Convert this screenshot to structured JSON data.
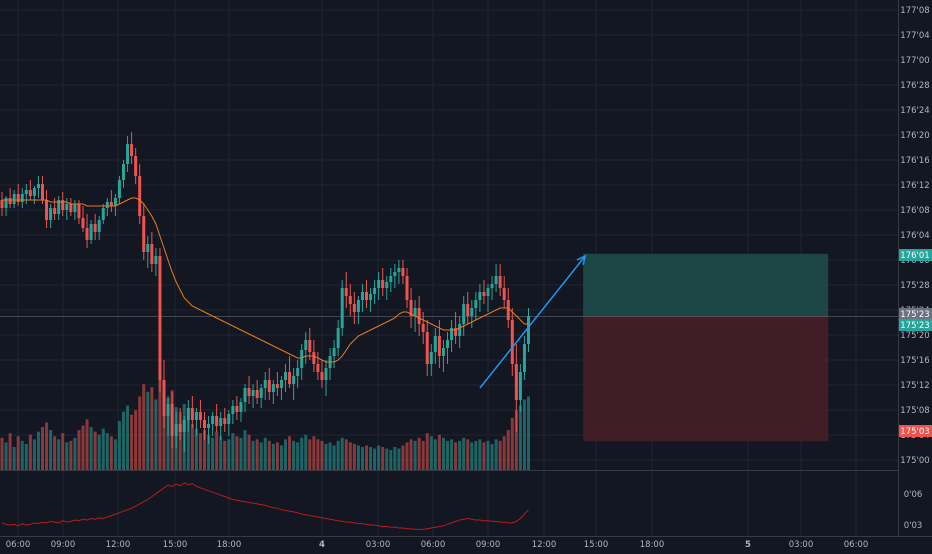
{
  "chart_data": {
    "type": "candlestick",
    "symbol": "",
    "colors": {
      "background": "#131722",
      "grid": "#1f2433",
      "up": "#26a69a",
      "down": "#ef5350",
      "up_volume": "#26a69a",
      "down_volume": "#ef5350",
      "moving_average": "#e87a22",
      "indicator_line": "#b71c1c",
      "trend_arrow": "#2196f3",
      "target_zone": "#1f4f4c",
      "stop_zone": "#4a2026",
      "axis_text": "#b2b5be",
      "scale_separator": "#363a45"
    },
    "x_ticks": [
      "06:00",
      "09:00",
      "12:00",
      "15:00",
      "18:00",
      "4",
      "03:00",
      "06:00",
      "09:00",
      "12:00",
      "15:00",
      "18:00",
      "5",
      "03:00",
      "06:00"
    ],
    "price_axis": {
      "ticks": [
        "177'08",
        "177'04",
        "177'00",
        "176'28",
        "176'24",
        "176'20",
        "176'16",
        "176'12",
        "176'08",
        "176'04",
        "176'00",
        "175'28",
        "175'24",
        "175'20",
        "175'16",
        "175'12",
        "175'08",
        "175'04",
        "175'00"
      ],
      "range": [
        174.95,
        177.3
      ]
    },
    "indicator_axis": {
      "ticks": [
        "0'06",
        "0'03"
      ]
    },
    "price_labels": [
      {
        "name": "target-price-label",
        "text": "176'01",
        "value": 176.03125,
        "color": "#26a69a"
      },
      {
        "name": "entry-price-label",
        "text": "175'23",
        "value": 175.71875,
        "color": "#6b7280"
      },
      {
        "name": "last-price-label",
        "text": "175'23",
        "value": 175.71875,
        "color": "#26a69a"
      },
      {
        "name": "stop-price-label",
        "text": "175'03",
        "value": 175.09375,
        "color": "#ef5350"
      }
    ],
    "position": {
      "entry": 175.71875,
      "target": 176.03125,
      "stop": 175.09375,
      "start_bar": 143,
      "end_bar": 204
    },
    "trend_arrow": {
      "from": [
        118,
        175.36
      ],
      "to": [
        144,
        176.02
      ]
    },
    "volume_ceiling": 6000,
    "indicator_range": [
      0.0,
      0.085
    ],
    "candles": [
      [
        176.3,
        176.34,
        176.22,
        176.26,
        2100
      ],
      [
        176.26,
        176.32,
        176.22,
        176.31,
        1800
      ],
      [
        176.31,
        176.36,
        176.26,
        176.28,
        2400
      ],
      [
        176.28,
        176.35,
        176.26,
        176.33,
        1500
      ],
      [
        176.33,
        176.38,
        176.27,
        176.29,
        2200
      ],
      [
        176.29,
        176.36,
        176.26,
        176.33,
        1900
      ],
      [
        176.33,
        176.38,
        176.28,
        176.35,
        1700
      ],
      [
        176.35,
        176.4,
        176.3,
        176.32,
        2300
      ],
      [
        176.32,
        176.37,
        176.28,
        176.36,
        2000
      ],
      [
        176.36,
        176.42,
        176.31,
        176.38,
        2500
      ],
      [
        176.38,
        176.42,
        176.28,
        176.3,
        2800
      ],
      [
        176.3,
        176.35,
        176.16,
        176.2,
        3100
      ],
      [
        176.2,
        176.28,
        176.16,
        176.26,
        2600
      ],
      [
        176.26,
        176.31,
        176.2,
        176.23,
        2200
      ],
      [
        176.23,
        176.32,
        176.2,
        176.3,
        2000
      ],
      [
        176.3,
        176.34,
        176.22,
        176.25,
        2400
      ],
      [
        176.25,
        176.31,
        176.2,
        176.28,
        1800
      ],
      [
        176.28,
        176.31,
        176.22,
        176.24,
        1900
      ],
      [
        176.24,
        176.3,
        176.2,
        176.28,
        2100
      ],
      [
        176.28,
        176.3,
        176.18,
        176.21,
        2600
      ],
      [
        176.21,
        176.27,
        176.14,
        176.16,
        2900
      ],
      [
        176.16,
        176.23,
        176.06,
        176.1,
        3300
      ],
      [
        176.1,
        176.2,
        176.08,
        176.18,
        2800
      ],
      [
        176.18,
        176.23,
        176.1,
        176.14,
        2500
      ],
      [
        176.14,
        176.22,
        176.1,
        176.2,
        2300
      ],
      [
        176.2,
        176.28,
        176.18,
        176.26,
        2700
      ],
      [
        176.26,
        176.31,
        176.22,
        176.29,
        2400
      ],
      [
        176.29,
        176.35,
        176.24,
        176.27,
        2200
      ],
      [
        176.27,
        176.33,
        176.22,
        176.31,
        2000
      ],
      [
        176.31,
        176.42,
        176.28,
        176.4,
        3200
      ],
      [
        176.4,
        176.5,
        176.36,
        176.48,
        3800
      ],
      [
        176.48,
        176.62,
        176.44,
        176.58,
        4200
      ],
      [
        176.58,
        176.64,
        176.48,
        176.52,
        3600
      ],
      [
        176.52,
        176.56,
        176.38,
        176.42,
        3900
      ],
      [
        176.42,
        176.48,
        176.18,
        176.22,
        4800
      ],
      [
        176.22,
        176.28,
        176.0,
        176.04,
        5600
      ],
      [
        176.04,
        176.12,
        175.96,
        176.08,
        5100
      ],
      [
        176.08,
        176.14,
        175.94,
        175.98,
        5400
      ],
      [
        175.98,
        176.06,
        175.92,
        176.02,
        4600
      ],
      [
        176.02,
        176.06,
        175.34,
        175.4,
        6000
      ],
      [
        175.4,
        175.5,
        175.16,
        175.22,
        5500
      ],
      [
        175.22,
        175.32,
        175.12,
        175.28,
        4700
      ],
      [
        175.28,
        175.34,
        175.06,
        175.12,
        5200
      ],
      [
        175.12,
        175.24,
        175.06,
        175.18,
        4100
      ],
      [
        175.18,
        175.26,
        175.1,
        175.14,
        3800
      ],
      [
        175.14,
        175.22,
        175.04,
        175.2,
        4300
      ],
      [
        175.2,
        175.3,
        175.14,
        175.26,
        3300
      ],
      [
        175.26,
        175.32,
        175.16,
        175.2,
        3000
      ],
      [
        175.2,
        175.26,
        175.12,
        175.24,
        2700
      ],
      [
        175.24,
        175.3,
        175.16,
        175.2,
        2400
      ],
      [
        175.2,
        175.24,
        175.1,
        175.16,
        2600
      ],
      [
        175.16,
        175.22,
        175.08,
        175.18,
        2300
      ],
      [
        175.18,
        175.24,
        175.12,
        175.22,
        2100
      ],
      [
        175.22,
        175.28,
        175.14,
        175.17,
        2500
      ],
      [
        175.17,
        175.24,
        175.1,
        175.21,
        2200
      ],
      [
        175.21,
        175.26,
        175.14,
        175.18,
        1900
      ],
      [
        175.18,
        175.25,
        175.12,
        175.23,
        2000
      ],
      [
        175.23,
        175.3,
        175.18,
        175.27,
        2400
      ],
      [
        175.27,
        175.32,
        175.2,
        175.24,
        2200
      ],
      [
        175.24,
        175.31,
        175.19,
        175.29,
        2100
      ],
      [
        175.29,
        175.38,
        175.24,
        175.36,
        2600
      ],
      [
        175.36,
        175.42,
        175.28,
        175.32,
        2300
      ],
      [
        175.32,
        175.38,
        175.26,
        175.35,
        1900
      ],
      [
        175.35,
        175.4,
        175.28,
        175.31,
        2000
      ],
      [
        175.31,
        175.38,
        175.26,
        175.36,
        1800
      ],
      [
        175.36,
        175.44,
        175.3,
        175.4,
        2100
      ],
      [
        175.4,
        175.46,
        175.3,
        175.34,
        1900
      ],
      [
        175.34,
        175.4,
        175.28,
        175.38,
        1700
      ],
      [
        175.38,
        175.44,
        175.32,
        175.36,
        1800
      ],
      [
        175.36,
        175.42,
        175.3,
        175.4,
        1600
      ],
      [
        175.4,
        175.48,
        175.34,
        175.44,
        2000
      ],
      [
        175.44,
        175.52,
        175.36,
        175.38,
        2200
      ],
      [
        175.38,
        175.46,
        175.3,
        175.42,
        1900
      ],
      [
        175.42,
        175.5,
        175.36,
        175.46,
        1800
      ],
      [
        175.46,
        175.58,
        175.4,
        175.55,
        2100
      ],
      [
        175.55,
        175.64,
        175.48,
        175.6,
        2300
      ],
      [
        175.6,
        175.66,
        175.5,
        175.54,
        2000
      ],
      [
        175.54,
        175.6,
        175.44,
        175.48,
        2200
      ],
      [
        175.48,
        175.54,
        175.4,
        175.44,
        2000
      ],
      [
        175.44,
        175.5,
        175.36,
        175.4,
        1900
      ],
      [
        175.4,
        175.5,
        175.32,
        175.46,
        1700
      ],
      [
        175.46,
        175.56,
        175.4,
        175.52,
        1800
      ],
      [
        175.52,
        175.6,
        175.46,
        175.56,
        1600
      ],
      [
        175.56,
        175.7,
        175.52,
        175.66,
        1900
      ],
      [
        175.66,
        175.9,
        175.62,
        175.86,
        2100
      ],
      [
        175.86,
        175.94,
        175.76,
        175.82,
        2000
      ],
      [
        175.82,
        175.88,
        175.72,
        175.78,
        1800
      ],
      [
        175.78,
        175.84,
        175.68,
        175.74,
        1700
      ],
      [
        175.74,
        175.82,
        175.68,
        175.8,
        1600
      ],
      [
        175.8,
        175.88,
        175.74,
        175.84,
        1500
      ],
      [
        175.84,
        175.9,
        175.76,
        175.8,
        1600
      ],
      [
        175.8,
        175.86,
        175.74,
        175.83,
        1500
      ],
      [
        175.83,
        175.9,
        175.78,
        175.86,
        1400
      ],
      [
        175.86,
        175.94,
        175.8,
        175.9,
        1600
      ],
      [
        175.9,
        175.96,
        175.82,
        175.86,
        1500
      ],
      [
        175.86,
        175.92,
        175.8,
        175.89,
        1400
      ],
      [
        175.89,
        175.96,
        175.84,
        175.92,
        1300
      ],
      [
        175.92,
        175.98,
        175.86,
        175.94,
        1500
      ],
      [
        175.94,
        176.0,
        175.88,
        175.96,
        1400
      ],
      [
        175.96,
        176.0,
        175.88,
        175.92,
        1600
      ],
      [
        175.92,
        175.96,
        175.76,
        175.8,
        1800
      ],
      [
        175.8,
        175.86,
        175.66,
        175.72,
        2000
      ],
      [
        175.72,
        175.8,
        175.64,
        175.76,
        1900
      ],
      [
        175.76,
        175.82,
        175.62,
        175.68,
        2100
      ],
      [
        175.68,
        175.74,
        175.58,
        175.64,
        1900
      ],
      [
        175.64,
        175.7,
        175.42,
        175.48,
        2400
      ],
      [
        175.48,
        175.58,
        175.42,
        175.54,
        2200
      ],
      [
        175.54,
        175.66,
        175.48,
        175.62,
        2000
      ],
      [
        175.62,
        175.7,
        175.46,
        175.52,
        2300
      ],
      [
        175.52,
        175.6,
        175.44,
        175.56,
        2100
      ],
      [
        175.56,
        175.64,
        175.48,
        175.6,
        1900
      ],
      [
        175.6,
        175.7,
        175.54,
        175.66,
        2000
      ],
      [
        175.66,
        175.74,
        175.58,
        175.62,
        1800
      ],
      [
        175.62,
        175.72,
        175.56,
        175.68,
        1900
      ],
      [
        175.68,
        175.82,
        175.62,
        175.78,
        2100
      ],
      [
        175.78,
        175.84,
        175.68,
        175.72,
        2000
      ],
      [
        175.72,
        175.8,
        175.66,
        175.76,
        1800
      ],
      [
        175.76,
        175.84,
        175.7,
        175.8,
        1900
      ],
      [
        175.8,
        175.88,
        175.74,
        175.84,
        2000
      ],
      [
        175.84,
        175.9,
        175.78,
        175.82,
        1800
      ],
      [
        175.82,
        175.88,
        175.74,
        175.86,
        1900
      ],
      [
        175.86,
        175.92,
        175.8,
        175.88,
        1700
      ],
      [
        175.88,
        175.98,
        175.84,
        175.92,
        2000
      ],
      [
        175.92,
        175.98,
        175.82,
        175.86,
        1900
      ],
      [
        175.86,
        175.92,
        175.76,
        175.8,
        2200
      ],
      [
        175.8,
        175.86,
        175.66,
        175.7,
        2600
      ],
      [
        175.7,
        175.76,
        175.42,
        175.48,
        3400
      ],
      [
        175.48,
        175.58,
        175.14,
        175.3,
        3900
      ],
      [
        175.3,
        175.48,
        175.24,
        175.44,
        4200
      ],
      [
        175.44,
        175.62,
        175.4,
        175.58,
        4600
      ],
      [
        175.58,
        175.76,
        175.54,
        175.72,
        4800
      ]
    ],
    "ma": [
      176.3,
      176.3,
      176.3,
      176.3,
      176.3,
      176.3,
      176.3,
      176.3,
      176.3,
      176.3,
      176.3,
      176.3,
      176.29,
      176.29,
      176.29,
      176.29,
      176.29,
      176.28,
      176.28,
      176.28,
      176.28,
      176.27,
      176.27,
      176.27,
      176.27,
      176.27,
      176.27,
      176.27,
      176.27,
      176.28,
      176.29,
      176.3,
      176.31,
      176.31,
      176.3,
      176.28,
      176.25,
      176.22,
      176.18,
      176.12,
      176.06,
      176.0,
      175.94,
      175.89,
      175.85,
      175.81,
      175.79,
      175.77,
      175.76,
      175.75,
      175.74,
      175.73,
      175.72,
      175.71,
      175.7,
      175.69,
      175.68,
      175.67,
      175.66,
      175.65,
      175.64,
      175.63,
      175.62,
      175.61,
      175.6,
      175.59,
      175.58,
      175.57,
      175.56,
      175.55,
      175.54,
      175.53,
      175.52,
      175.51,
      175.51,
      175.52,
      175.52,
      175.52,
      175.51,
      175.5,
      175.49,
      175.49,
      175.49,
      175.5,
      175.52,
      175.55,
      175.58,
      175.6,
      175.62,
      175.63,
      175.64,
      175.65,
      175.66,
      175.67,
      175.68,
      175.69,
      175.7,
      175.71,
      175.73,
      175.74,
      175.74,
      175.73,
      175.72,
      175.71,
      175.7,
      175.69,
      175.68,
      175.67,
      175.66,
      175.65,
      175.65,
      175.65,
      175.65,
      175.66,
      175.67,
      175.68,
      175.69,
      175.7,
      175.71,
      175.72,
      175.73,
      175.74,
      175.75,
      175.76,
      175.76,
      175.76,
      175.74,
      175.72,
      175.7,
      175.68,
      175.68
    ],
    "indicator": [
      0.018,
      0.016,
      0.015,
      0.016,
      0.014,
      0.017,
      0.015,
      0.016,
      0.018,
      0.017,
      0.019,
      0.018,
      0.02,
      0.019,
      0.018,
      0.021,
      0.019,
      0.02,
      0.022,
      0.021,
      0.023,
      0.022,
      0.024,
      0.023,
      0.025,
      0.024,
      0.026,
      0.028,
      0.03,
      0.032,
      0.034,
      0.036,
      0.038,
      0.041,
      0.044,
      0.047,
      0.05,
      0.054,
      0.058,
      0.062,
      0.066,
      0.07,
      0.068,
      0.071,
      0.069,
      0.073,
      0.07,
      0.072,
      0.068,
      0.066,
      0.064,
      0.062,
      0.06,
      0.058,
      0.056,
      0.054,
      0.052,
      0.05,
      0.049,
      0.048,
      0.047,
      0.046,
      0.045,
      0.044,
      0.043,
      0.042,
      0.04,
      0.039,
      0.038,
      0.036,
      0.035,
      0.034,
      0.033,
      0.032,
      0.03,
      0.029,
      0.028,
      0.027,
      0.026,
      0.025,
      0.024,
      0.023,
      0.022,
      0.021,
      0.02,
      0.019,
      0.019,
      0.018,
      0.017,
      0.017,
      0.016,
      0.015,
      0.015,
      0.014,
      0.013,
      0.013,
      0.012,
      0.012,
      0.011,
      0.011,
      0.01,
      0.01,
      0.009,
      0.009,
      0.009,
      0.01,
      0.011,
      0.012,
      0.013,
      0.014,
      0.016,
      0.018,
      0.02,
      0.022,
      0.023,
      0.024,
      0.023,
      0.022,
      0.022,
      0.021,
      0.021,
      0.02,
      0.02,
      0.019,
      0.019,
      0.018,
      0.018,
      0.02,
      0.024,
      0.03,
      0.036
    ]
  }
}
